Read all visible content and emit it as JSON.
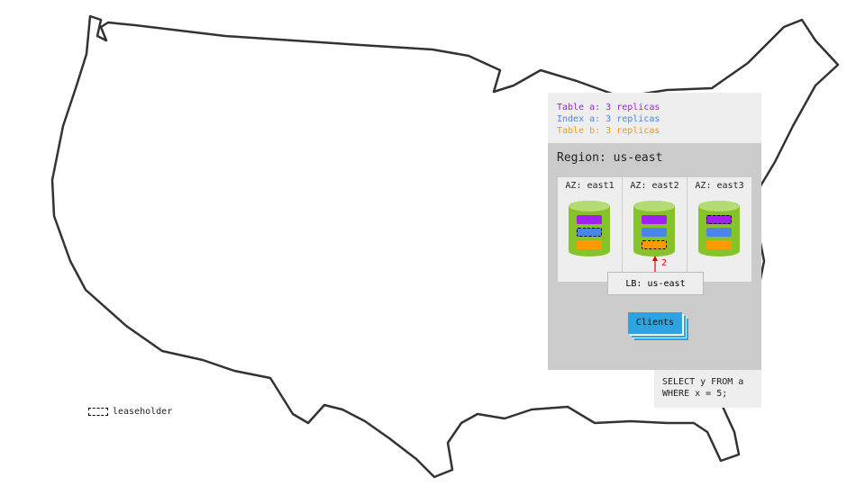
{
  "legend": [
    {
      "text": "Table a: 3 replicas",
      "color": "#a020f0"
    },
    {
      "text": "Index a: 3 replicas",
      "color": "#4a86e8"
    },
    {
      "text": "Table b: 3 replicas",
      "color": "#ff9900"
    }
  ],
  "region": {
    "title": "Region: us-east"
  },
  "azs": [
    {
      "label": "AZ: east1",
      "leaseholder": "index"
    },
    {
      "label": "AZ: east2",
      "leaseholder": "table-b"
    },
    {
      "label": "AZ: east3",
      "leaseholder": "table-a"
    }
  ],
  "arrow_label": "2",
  "lb": "LB: us-east",
  "clients": "Clients",
  "query": [
    "SELECT y FROM a",
    "WHERE x = 5;"
  ],
  "leaseholder_key": "leaseholder"
}
